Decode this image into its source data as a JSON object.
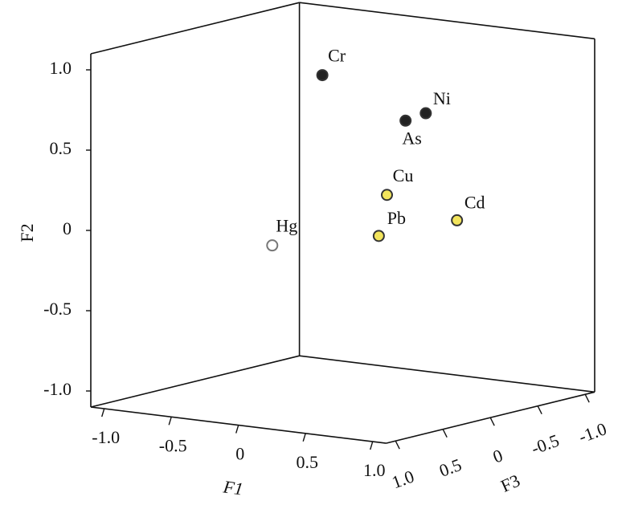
{
  "chart_data": {
    "type": "scatter3d",
    "xlabel": "F1",
    "ylabel": "F2",
    "zlabel": "F3",
    "xlim": [
      -1.1,
      1.1
    ],
    "ylim": [
      -1.1,
      1.1
    ],
    "zlim": [
      -1.1,
      1.1
    ],
    "xticks": [
      {
        "value": -1,
        "label": "-1.0"
      },
      -0.5,
      0,
      0.5,
      {
        "value": 1,
        "label": "1.0"
      }
    ],
    "yticks": [
      {
        "value": 1,
        "label": "1.0"
      },
      0.5,
      0,
      -0.5,
      {
        "value": -1,
        "label": "-1.0"
      }
    ],
    "zticks": [
      {
        "value": 1,
        "label": "1.0"
      },
      0.5,
      0,
      -0.5,
      {
        "value": -1,
        "label": "-1.0"
      }
    ],
    "points": [
      {
        "name": "Cr",
        "x": 0.06,
        "y": 0.97,
        "z": 0.3,
        "color": "#222222"
      },
      {
        "name": "Ni",
        "x": 0.76,
        "y": 0.79,
        "z": 0.2,
        "color": "#222222"
      },
      {
        "name": "As",
        "x": 0.68,
        "y": 0.75,
        "z": 0.3,
        "color": "#222222"
      },
      {
        "name": "Cu",
        "x": 0.4,
        "y": 0.23,
        "z": 0.1,
        "color": "#f2e45c"
      },
      {
        "name": "Pb",
        "x": 0.41,
        "y": -0.01,
        "z": 0.2,
        "color": "#f2e45c"
      },
      {
        "name": "Cd",
        "x": 0.71,
        "y": 0.06,
        "z": -0.2,
        "color": "#f2e45c"
      },
      {
        "name": "Hg",
        "x": 0.04,
        "y": -0.02,
        "z": 0.8,
        "color": "#ffffff"
      }
    ]
  }
}
